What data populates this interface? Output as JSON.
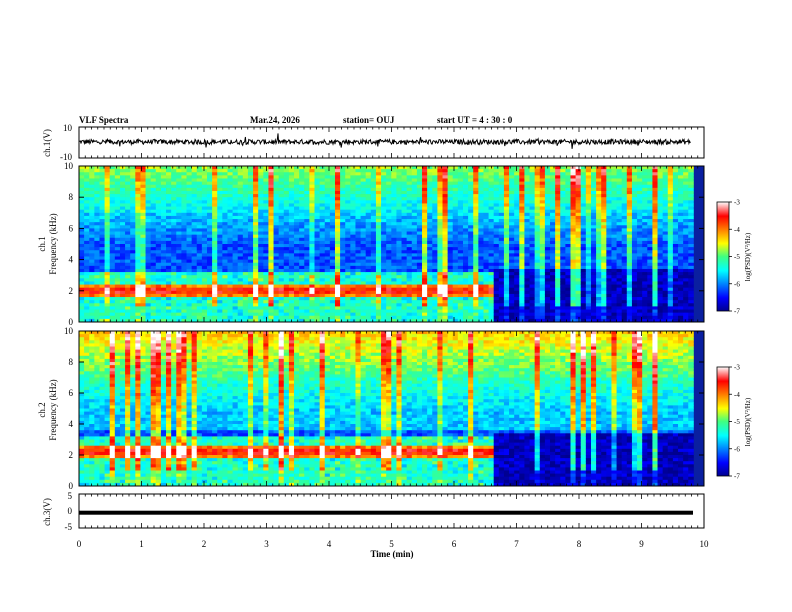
{
  "header": {
    "title": "VLF Spectra",
    "date": "Mar.24, 2026",
    "station": "station= OUJ",
    "start_time": "start  UT =   4 : 30 : 0"
  },
  "chart_data": [
    {
      "type": "line",
      "name": "ch1-waveform",
      "ylabel": "ch.1(V)",
      "ylim": [
        -10,
        10
      ],
      "yticks": [
        "10",
        "-10"
      ],
      "xlim": [
        0,
        10
      ],
      "series": [
        {
          "name": "ch.1",
          "description_mean": 0.4,
          "amplitude": 2.0
        }
      ]
    },
    {
      "type": "heatmap",
      "name": "ch1-spectrogram",
      "ylabel": "ch.1\nFrequency  (kHz)",
      "ylim": [
        0,
        10
      ],
      "yticks": [
        "0",
        "2",
        "4",
        "6",
        "8",
        "10"
      ],
      "xlim": [
        0,
        9.83
      ],
      "feature_change_time_min": 6.6,
      "strong_band_khz": 2.0,
      "colorbar": {
        "label": "log(PSD)(V²/Hz)",
        "range": [
          -7,
          -3
        ],
        "ticks": [
          "-3",
          "-4",
          "-5",
          "-6",
          "-7"
        ]
      }
    },
    {
      "type": "heatmap",
      "name": "ch2-spectrogram",
      "ylabel": "ch.2\nFrequency  (kHz)",
      "ylim": [
        0,
        10
      ],
      "yticks": [
        "0",
        "2",
        "4",
        "6",
        "8",
        "10"
      ],
      "xlim": [
        0,
        9.83
      ],
      "feature_change_time_min": 6.6,
      "strong_band_khz": 2.2,
      "colorbar": {
        "label": "log(PSD)(V²/Hz)",
        "range": [
          -7,
          -3
        ],
        "ticks": [
          "-3",
          "-4",
          "-5",
          "-6",
          "-7"
        ]
      }
    },
    {
      "type": "line",
      "name": "ch3-waveform",
      "ylabel": "ch.3(V)",
      "ylim": [
        -5,
        5
      ],
      "yticks": [
        "5",
        "0",
        "-5"
      ],
      "xlim": [
        0,
        10
      ],
      "series": [
        {
          "name": "ch.3",
          "constant_value": -0.5
        }
      ]
    }
  ],
  "xaxis": {
    "label": "Time  (min)",
    "ticks": [
      "0",
      "1",
      "2",
      "3",
      "4",
      "5",
      "6",
      "7",
      "8",
      "9",
      "10"
    ],
    "range": [
      0,
      10
    ]
  },
  "colors": {
    "axis": "#000000",
    "background": "#ffffff"
  }
}
